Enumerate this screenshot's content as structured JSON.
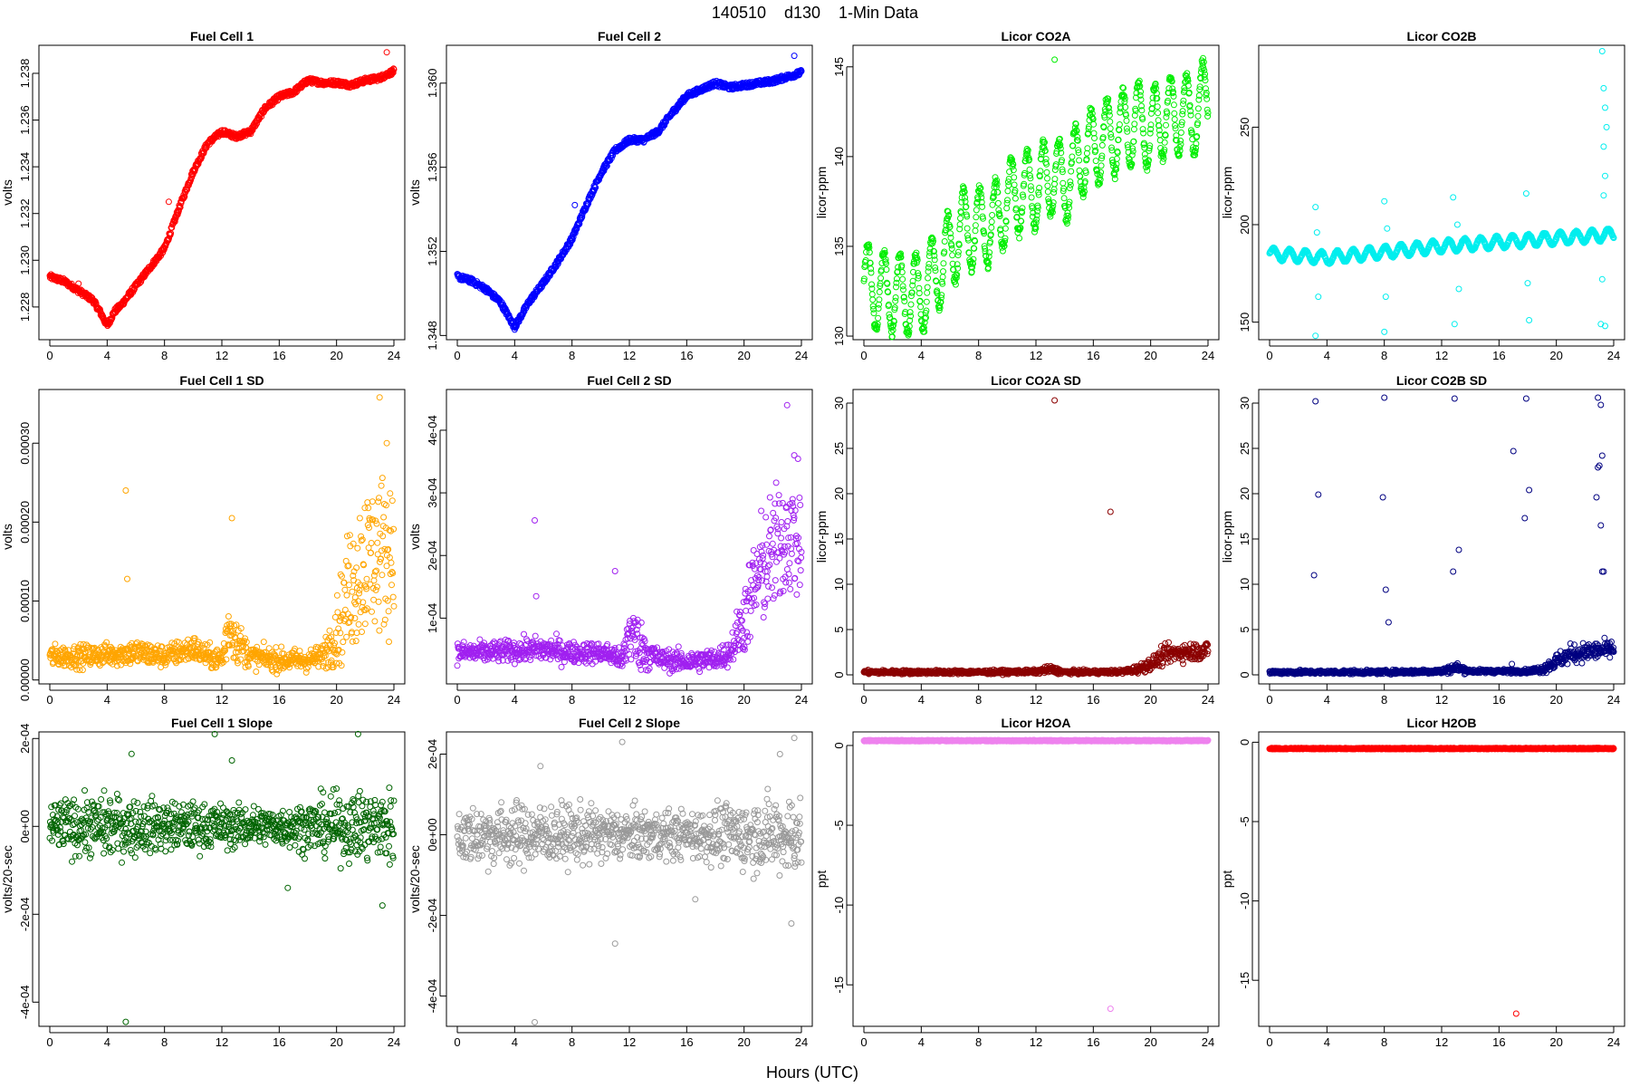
{
  "figure": {
    "title": "140510    d130    1-Min Data",
    "xlabel": "Hours (UTC)"
  },
  "chart_data": [
    {
      "type": "scatter",
      "title": "Fuel Cell 1",
      "ylabel": "volts",
      "xlabel": "",
      "color": "#ff0000",
      "xlim": [
        0,
        24
      ],
      "ylim": [
        1.2266,
        1.2392
      ],
      "xticks": [
        "0",
        "4",
        "8",
        "12",
        "16",
        "20",
        "24"
      ],
      "xtick_values": [
        0,
        4,
        8,
        12,
        16,
        20,
        24
      ],
      "yticks": [
        "1.228",
        "1.230",
        "1.232",
        "1.234",
        "1.236",
        "1.238"
      ],
      "ytick_values": [
        1.228,
        1.23,
        1.232,
        1.234,
        1.236,
        1.238
      ],
      "x": [
        0,
        1,
        2,
        3,
        3.5,
        4,
        4.5,
        5,
        6,
        7,
        8,
        9,
        10,
        11,
        12,
        13,
        14,
        15,
        16,
        17,
        18,
        19,
        20,
        21,
        22,
        23,
        24
      ],
      "y": [
        1.2293,
        1.2291,
        1.2287,
        1.2283,
        1.2278,
        1.2272,
        1.2278,
        1.2281,
        1.2289,
        1.2297,
        1.2305,
        1.2322,
        1.2338,
        1.235,
        1.2355,
        1.2353,
        1.2355,
        1.2365,
        1.237,
        1.2372,
        1.2377,
        1.2376,
        1.2376,
        1.2375,
        1.2377,
        1.2378,
        1.2381
      ],
      "outliers": [
        [
          8.3,
          1.2325
        ],
        [
          23.5,
          1.2389
        ],
        [
          2.0,
          1.229
        ]
      ]
    },
    {
      "type": "scatter",
      "title": "Fuel Cell 2",
      "ylabel": "volts",
      "xlabel": "",
      "color": "#0000ff",
      "xlim": [
        0,
        24
      ],
      "ylim": [
        1.3478,
        1.3618
      ],
      "xticks": [
        "0",
        "4",
        "8",
        "12",
        "16",
        "20",
        "24"
      ],
      "xtick_values": [
        0,
        4,
        8,
        12,
        16,
        20,
        24
      ],
      "yticks": [
        "1.348",
        "1.352",
        "1.356",
        "1.360"
      ],
      "ytick_values": [
        1.348,
        1.352,
        1.356,
        1.36
      ],
      "x": [
        0,
        1,
        2,
        3,
        3.5,
        4,
        4.5,
        5,
        6,
        7,
        8,
        9,
        10,
        11,
        12,
        13,
        14,
        15,
        16,
        17,
        18,
        19,
        20,
        21,
        22,
        23,
        24
      ],
      "y": [
        1.3508,
        1.3506,
        1.3502,
        1.3496,
        1.349,
        1.3484,
        1.349,
        1.3496,
        1.3505,
        1.3515,
        1.3526,
        1.3542,
        1.3557,
        1.3568,
        1.3573,
        1.3573,
        1.3577,
        1.3586,
        1.3594,
        1.3597,
        1.36,
        1.3598,
        1.3599,
        1.36,
        1.3601,
        1.3603,
        1.3605
      ],
      "outliers": [
        [
          8.2,
          1.3542
        ],
        [
          23.5,
          1.3613
        ]
      ]
    },
    {
      "type": "scatter",
      "title": "Licor CO2A",
      "ylabel": "licor-ppm",
      "xlabel": "",
      "color": "#00ee00",
      "xlim": [
        0,
        24
      ],
      "ylim": [
        129.8,
        146.2
      ],
      "xticks": [
        "0",
        "4",
        "8",
        "12",
        "16",
        "20",
        "24"
      ],
      "xtick_values": [
        0,
        4,
        8,
        12,
        16,
        20,
        24
      ],
      "yticks": [
        "130",
        "135",
        "140",
        "145"
      ],
      "ytick_values": [
        130,
        135,
        140,
        145
      ],
      "x": [
        0,
        1,
        2,
        3,
        4,
        5,
        6,
        7,
        8,
        9,
        10,
        11,
        12,
        13,
        14,
        15,
        16,
        17,
        18,
        19,
        20,
        21,
        22,
        23,
        24
      ],
      "y": [
        133,
        132.5,
        132.4,
        132.3,
        132.3,
        133.5,
        134.8,
        136,
        136,
        136.2,
        137.5,
        138,
        138.2,
        139,
        138.5,
        139.8,
        140.5,
        141,
        141.4,
        142,
        141.5,
        142.2,
        142.3,
        142.3,
        143.5
      ],
      "oscillation_amplitude": 2.2,
      "oscillation_period_hours": 1.0,
      "outliers": [
        [
          13.3,
          145.4
        ]
      ]
    },
    {
      "type": "scatter",
      "title": "Licor CO2B",
      "ylabel": "licor-ppm",
      "xlabel": "",
      "color": "#00eeee",
      "xlim": [
        0,
        24
      ],
      "ylim": [
        141,
        292
      ],
      "xticks": [
        "0",
        "4",
        "8",
        "12",
        "16",
        "20",
        "24"
      ],
      "xtick_values": [
        0,
        4,
        8,
        12,
        16,
        20,
        24
      ],
      "yticks": [
        "150",
        "200",
        "250"
      ],
      "ytick_values": [
        150,
        200,
        250
      ],
      "x": [
        0,
        4,
        8,
        12,
        16,
        20,
        24
      ],
      "y": [
        185,
        183,
        186,
        189,
        191,
        193,
        195
      ],
      "oscillation_amplitude": 3,
      "oscillation_period_hours": 1.0,
      "outliers": [
        [
          3.2,
          209
        ],
        [
          3.3,
          196
        ],
        [
          3.4,
          163
        ],
        [
          3.2,
          143
        ],
        [
          8.0,
          212
        ],
        [
          8.2,
          198
        ],
        [
          8.1,
          163
        ],
        [
          8.0,
          145
        ],
        [
          12.8,
          214
        ],
        [
          13.1,
          200
        ],
        [
          13.2,
          167
        ],
        [
          12.9,
          149
        ],
        [
          17.9,
          216
        ],
        [
          18.0,
          170
        ],
        [
          18.1,
          151
        ],
        [
          23.2,
          289
        ],
        [
          23.3,
          270
        ],
        [
          23.4,
          260
        ],
        [
          23.5,
          250
        ],
        [
          23.3,
          240
        ],
        [
          23.4,
          225
        ],
        [
          23.3,
          215
        ],
        [
          23.2,
          172
        ],
        [
          23.1,
          149
        ],
        [
          23.4,
          148
        ]
      ]
    },
    {
      "type": "scatter",
      "title": "Fuel Cell 1 SD",
      "ylabel": "volts",
      "xlabel": "",
      "color": "#ffa500",
      "xlim": [
        0,
        24
      ],
      "ylim": [
        -5e-06,
        0.000368
      ],
      "xticks": [
        "0",
        "4",
        "8",
        "12",
        "16",
        "20",
        "24"
      ],
      "xtick_values": [
        0,
        4,
        8,
        12,
        16,
        20,
        24
      ],
      "yticks": [
        "0.00000",
        "0.00010",
        "0.00020",
        "0.00030"
      ],
      "ytick_values": [
        0,
        0.0001,
        0.0002,
        0.0003
      ],
      "x": [
        0,
        2,
        4,
        6,
        8,
        10,
        11,
        12,
        12.5,
        13,
        14,
        16,
        18,
        19,
        20,
        21,
        22,
        23,
        24
      ],
      "y": [
        3e-05,
        3e-05,
        3.2e-05,
        3.5e-05,
        3e-05,
        4e-05,
        3e-05,
        2.5e-05,
        7e-05,
        5e-05,
        3e-05,
        2.5e-05,
        2.5e-05,
        3e-05,
        6e-05,
        0.00012,
        0.00015,
        0.00016,
        0.00017
      ],
      "spread": [
        1e-05,
        1e-05,
        1e-05,
        1.2e-05,
        1e-05,
        1.2e-05,
        1e-05,
        1e-05,
        3e-05,
        2e-05,
        1e-05,
        1e-05,
        1e-05,
        1e-05,
        3e-05,
        6e-05,
        7e-05,
        7e-05,
        7e-05
      ],
      "outliers": [
        [
          5.3,
          0.00024
        ],
        [
          5.4,
          0.000128
        ],
        [
          12.7,
          0.000205
        ],
        [
          23.0,
          0.000358
        ],
        [
          23.5,
          0.0003
        ]
      ]
    },
    {
      "type": "scatter",
      "title": "Fuel Cell 2 SD",
      "ylabel": "volts",
      "xlabel": "",
      "color": "#a020f0",
      "xlim": [
        0,
        24
      ],
      "ylim": [
        -5e-06,
        0.000465
      ],
      "xticks": [
        "0",
        "4",
        "8",
        "12",
        "16",
        "20",
        "24"
      ],
      "xtick_values": [
        0,
        4,
        8,
        12,
        16,
        20,
        24
      ],
      "yticks": [
        "1e-04",
        "2e-04",
        "3e-04",
        "4e-04"
      ],
      "ytick_values": [
        0.0001,
        0.0002,
        0.0003,
        0.0004
      ],
      "x": [
        0,
        2,
        4,
        6,
        8,
        10,
        11,
        11.5,
        12,
        13,
        14,
        16,
        18,
        19,
        20,
        21,
        22,
        23,
        24
      ],
      "y": [
        4.5e-05,
        4.5e-05,
        4.8e-05,
        5e-05,
        4.5e-05,
        4.5e-05,
        4e-05,
        3e-05,
        8e-05,
        5e-05,
        3.5e-05,
        3e-05,
        3.5e-05,
        4.5e-05,
        0.0001,
        0.00017,
        0.0002,
        0.00024,
        0.00022
      ],
      "spread": [
        1.2e-05,
        1.2e-05,
        1.2e-05,
        1.5e-05,
        1.2e-05,
        1.2e-05,
        1.2e-05,
        1.2e-05,
        4e-05,
        2.5e-05,
        1.2e-05,
        1.2e-05,
        1.2e-05,
        1.5e-05,
        4e-05,
        6e-05,
        7e-05,
        7e-05,
        7e-05
      ],
      "outliers": [
        [
          5.4,
          0.000256
        ],
        [
          5.5,
          0.000135
        ],
        [
          11.0,
          0.000175
        ],
        [
          23.0,
          0.00044
        ],
        [
          23.5,
          0.00036
        ]
      ]
    },
    {
      "type": "scatter",
      "title": "Licor CO2A SD",
      "ylabel": "licor-ppm",
      "xlabel": "",
      "color": "#8b0000",
      "xlim": [
        0,
        24
      ],
      "ylim": [
        -1,
        31.5
      ],
      "xticks": [
        "0",
        "4",
        "8",
        "12",
        "16",
        "20",
        "24"
      ],
      "xtick_values": [
        0,
        4,
        8,
        12,
        16,
        20,
        24
      ],
      "yticks": [
        "0",
        "5",
        "10",
        "15",
        "20",
        "25",
        "30"
      ],
      "ytick_values": [
        0,
        5,
        10,
        15,
        20,
        25,
        30
      ],
      "x": [
        0,
        4,
        8,
        12,
        13,
        14,
        16,
        18,
        19,
        20,
        21,
        22,
        23,
        24
      ],
      "y": [
        0.3,
        0.3,
        0.3,
        0.35,
        0.6,
        0.3,
        0.3,
        0.35,
        0.6,
        1.2,
        2.2,
        2.5,
        2.6,
        2.7
      ],
      "spread": [
        0.15,
        0.15,
        0.15,
        0.15,
        0.3,
        0.15,
        0.15,
        0.15,
        0.3,
        0.5,
        0.7,
        0.7,
        0.7,
        0.7
      ],
      "outliers": [
        [
          13.3,
          30.3
        ],
        [
          17.2,
          18.0
        ]
      ]
    },
    {
      "type": "scatter",
      "title": "Licor CO2B SD",
      "ylabel": "licor-ppm",
      "xlabel": "",
      "color": "#000080",
      "xlim": [
        0,
        24
      ],
      "ylim": [
        -1,
        31.5
      ],
      "xticks": [
        "0",
        "4",
        "8",
        "12",
        "16",
        "20",
        "24"
      ],
      "xtick_values": [
        0,
        4,
        8,
        12,
        16,
        20,
        24
      ],
      "yticks": [
        "0",
        "5",
        "10",
        "15",
        "20",
        "25",
        "30"
      ],
      "ytick_values": [
        0,
        5,
        10,
        15,
        20,
        25,
        30
      ],
      "x": [
        0,
        4,
        8,
        12,
        13,
        14,
        16,
        18,
        19,
        20,
        21,
        22,
        23,
        24
      ],
      "y": [
        0.3,
        0.3,
        0.3,
        0.4,
        0.8,
        0.4,
        0.4,
        0.4,
        0.6,
        1.5,
        2.3,
        2.5,
        2.7,
        2.8
      ],
      "spread": [
        0.15,
        0.15,
        0.15,
        0.2,
        0.4,
        0.15,
        0.15,
        0.15,
        0.3,
        0.6,
        0.7,
        0.7,
        0.7,
        0.7
      ],
      "outliers": [
        [
          3.2,
          30.2
        ],
        [
          3.4,
          19.9
        ],
        [
          3.1,
          11.0
        ],
        [
          8.0,
          30.6
        ],
        [
          7.9,
          19.6
        ],
        [
          8.1,
          9.4
        ],
        [
          8.3,
          5.8
        ],
        [
          12.9,
          30.5
        ],
        [
          12.8,
          11.4
        ],
        [
          13.2,
          13.8
        ],
        [
          17.0,
          24.7
        ],
        [
          17.9,
          30.5
        ],
        [
          18.1,
          20.4
        ],
        [
          17.8,
          17.3
        ],
        [
          16.9,
          1.2
        ],
        [
          22.9,
          30.6
        ],
        [
          23.1,
          29.8
        ],
        [
          23.2,
          24.2
        ],
        [
          23.0,
          23.1
        ],
        [
          22.8,
          19.6
        ],
        [
          23.1,
          16.5
        ],
        [
          23.2,
          11.4
        ],
        [
          23.3,
          11.4
        ],
        [
          22.9,
          22.9
        ]
      ]
    },
    {
      "type": "scatter",
      "title": "Fuel Cell 1 Slope",
      "ylabel": "volts/20-sec",
      "xlabel": "",
      "color": "#006400",
      "xlim": [
        0,
        24
      ],
      "ylim": [
        -0.000455,
        0.000215
      ],
      "xticks": [
        "0",
        "4",
        "8",
        "12",
        "16",
        "20",
        "24"
      ],
      "xtick_values": [
        0,
        4,
        8,
        12,
        16,
        20,
        24
      ],
      "yticks": [
        "-4e-04",
        "-2e-04",
        "0e+00",
        "2e-04"
      ],
      "ytick_values": [
        -0.0004,
        -0.0002,
        0,
        0.0002
      ],
      "x": [
        0,
        4,
        8,
        12,
        16,
        20,
        24
      ],
      "y": [
        0,
        0,
        0,
        0,
        0,
        0,
        0
      ],
      "spread": [
        4e-05,
        5e-05,
        4e-05,
        3.5e-05,
        3e-05,
        5e-05,
        6e-05
      ],
      "outliers": [
        [
          5.3,
          -0.000445
        ],
        [
          11.5,
          0.00021
        ],
        [
          21.5,
          0.00021
        ],
        [
          5.7,
          0.000165
        ],
        [
          16.6,
          -0.00014
        ],
        [
          23.2,
          -0.00018
        ],
        [
          12.7,
          0.00015
        ]
      ]
    },
    {
      "type": "scatter",
      "title": "Fuel Cell 2 Slope",
      "ylabel": "volts/20-sec",
      "xlabel": "",
      "color": "#999999",
      "xlim": [
        0,
        24
      ],
      "ylim": [
        -0.000475,
        0.000255
      ],
      "xticks": [
        "0",
        "4",
        "8",
        "12",
        "16",
        "20",
        "24"
      ],
      "xtick_values": [
        0,
        4,
        8,
        12,
        16,
        20,
        24
      ],
      "yticks": [
        "-4e-04",
        "-2e-04",
        "0e+00",
        "2e-04"
      ],
      "ytick_values": [
        -0.0004,
        -0.0002,
        0,
        0.0002
      ],
      "x": [
        0,
        4,
        8,
        12,
        16,
        20,
        24
      ],
      "y": [
        0,
        0,
        0,
        0,
        0,
        0,
        0
      ],
      "spread": [
        5e-05,
        5.5e-05,
        5e-05,
        4.5e-05,
        4e-05,
        6e-05,
        7e-05
      ],
      "outliers": [
        [
          5.4,
          -0.000465
        ],
        [
          11.0,
          -0.00027
        ],
        [
          11.5,
          0.00023
        ],
        [
          23.5,
          0.00024
        ],
        [
          22.5,
          0.0002
        ],
        [
          23.3,
          -0.00022
        ],
        [
          16.6,
          -0.00016
        ],
        [
          5.8,
          0.00017
        ]
      ]
    },
    {
      "type": "scatter",
      "title": "Licor H2OA",
      "ylabel": "ppt",
      "xlabel": "",
      "color": "#ee82ee",
      "xlim": [
        0,
        24
      ],
      "ylim": [
        -17.6,
        0.85
      ],
      "xticks": [
        "0",
        "4",
        "8",
        "12",
        "16",
        "20",
        "24"
      ],
      "xtick_values": [
        0,
        4,
        8,
        12,
        16,
        20,
        24
      ],
      "yticks": [
        "-15",
        "-10",
        "-5",
        "0"
      ],
      "ytick_values": [
        -15,
        -10,
        -5,
        0
      ],
      "x": [
        0,
        24
      ],
      "y": [
        0.3,
        0.3
      ],
      "outliers": [
        [
          17.2,
          -16.5
        ]
      ]
    },
    {
      "type": "scatter",
      "title": "Licor H2OB",
      "ylabel": "ppt",
      "xlabel": "",
      "color": "#ff0000",
      "xlim": [
        0,
        24
      ],
      "ylim": [
        -17.9,
        0.65
      ],
      "xticks": [
        "0",
        "4",
        "8",
        "12",
        "16",
        "20",
        "24"
      ],
      "xtick_values": [
        0,
        4,
        8,
        12,
        16,
        20,
        24
      ],
      "yticks": [
        "-15",
        "-10",
        "-5",
        "0"
      ],
      "ytick_values": [
        -15,
        -10,
        -5,
        0
      ],
      "x": [
        0,
        24
      ],
      "y": [
        -0.4,
        -0.4
      ],
      "outliers": [
        [
          17.2,
          -17.1
        ]
      ]
    }
  ]
}
